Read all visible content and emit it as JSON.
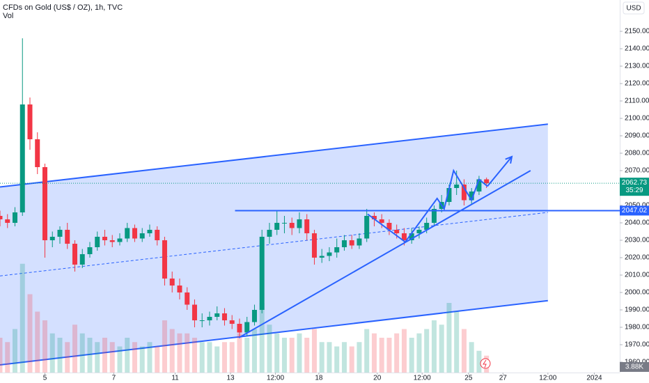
{
  "chart_data": {
    "type": "candlestick",
    "title": "CFDs on Gold (US$ / OZ), 1h, TVC",
    "volume_title": "Vol",
    "currency": "USD",
    "countdown": "35:29",
    "up_color": "#089981",
    "down_color": "#f23645",
    "x": [
      0,
      5,
      10,
      15,
      20,
      25,
      30,
      35,
      40,
      45,
      50,
      55,
      60,
      65,
      70,
      75,
      80,
      85,
      90,
      95,
      100,
      105,
      110,
      115,
      120,
      125,
      130,
      135,
      140,
      145,
      150,
      155,
      160,
      165,
      170,
      175,
      180,
      185,
      190,
      195,
      200,
      205,
      210,
      215,
      220,
      225,
      230,
      235,
      240,
      245,
      250,
      255,
      260,
      265,
      270,
      275,
      280,
      285,
      290,
      295,
      300,
      305,
      310,
      315,
      320,
      325
    ],
    "open": [
      2044,
      2042,
      2040,
      2046,
      2108,
      2088,
      2072,
      2030,
      2032,
      2036,
      2028,
      2016,
      2022,
      2026,
      2032,
      2030,
      2029,
      2031,
      2037,
      2031,
      2034,
      2036,
      2030,
      2008,
      2004,
      2000,
      1993,
      1984,
      1984,
      1986,
      1988,
      1984,
      1982,
      1977,
      1983,
      1990,
      2032,
      2036,
      2040,
      2040,
      2037,
      2042,
      2034,
      2020,
      2021,
      2023,
      2026,
      2030,
      2027,
      2031,
      2044,
      2042,
      2040,
      2036,
      2034,
      2030,
      2034,
      2036,
      2040,
      2048,
      2052,
      2060,
      2062,
      2053,
      2058,
      2065
    ],
    "high": [
      2047,
      2045,
      2049,
      2146,
      2112,
      2092,
      2074,
      2035,
      2038,
      2040,
      2030,
      2025,
      2029,
      2035,
      2036,
      2033,
      2034,
      2040,
      2039,
      2037,
      2039,
      2038,
      2032,
      2012,
      2008,
      2003,
      1996,
      1988,
      1989,
      1992,
      1991,
      1987,
      1985,
      1986,
      1993,
      2036,
      2040,
      2047,
      2044,
      2043,
      2046,
      2045,
      2036,
      2025,
      2026,
      2031,
      2033,
      2033,
      2034,
      2048,
      2046,
      2045,
      2042,
      2039,
      2037,
      2037,
      2038,
      2043,
      2050,
      2056,
      2062,
      2070,
      2065,
      2060,
      2067,
      2066
    ],
    "low": [
      2038,
      2037,
      2038,
      2044,
      2082,
      2068,
      2020,
      2026,
      2028,
      2025,
      2012,
      2014,
      2020,
      2024,
      2027,
      2026,
      2027,
      2029,
      2029,
      2029,
      2032,
      2027,
      2004,
      2000,
      1996,
      1990,
      1980,
      1980,
      1981,
      1984,
      1981,
      1979,
      1974,
      1975,
      1981,
      1988,
      2028,
      2033,
      2034,
      2033,
      2034,
      2030,
      2016,
      2017,
      2018,
      2020,
      2024,
      2025,
      2025,
      2029,
      2038,
      2037,
      2033,
      2031,
      2027,
      2028,
      2031,
      2034,
      2038,
      2046,
      2050,
      2056,
      2050,
      2051,
      2056,
      2060
    ],
    "close": [
      2042,
      2040,
      2046,
      2108,
      2088,
      2072,
      2030,
      2032,
      2036,
      2028,
      2016,
      2022,
      2026,
      2032,
      2030,
      2029,
      2031,
      2037,
      2031,
      2034,
      2036,
      2030,
      2008,
      2004,
      2000,
      1993,
      1984,
      1984,
      1986,
      1988,
      1984,
      1982,
      1977,
      1983,
      1990,
      2032,
      2036,
      2040,
      2040,
      2037,
      2042,
      2034,
      2020,
      2021,
      2023,
      2026,
      2030,
      2027,
      2031,
      2044,
      2042,
      2040,
      2036,
      2034,
      2030,
      2034,
      2036,
      2040,
      2048,
      2052,
      2060,
      2062,
      2053,
      2058,
      2065,
      2062.73
    ],
    "volume": [
      8,
      7,
      10,
      25,
      18,
      14,
      12,
      9,
      8,
      7,
      11,
      9,
      8,
      7,
      8,
      7,
      6,
      8,
      7,
      6,
      7,
      6,
      12,
      10,
      9,
      9,
      8,
      7,
      7,
      6,
      7,
      7,
      9,
      8,
      10,
      16,
      11,
      9,
      8,
      8,
      9,
      8,
      10,
      7,
      7,
      6,
      7,
      6,
      7,
      10,
      9,
      8,
      8,
      9,
      10,
      8,
      9,
      10,
      12,
      11,
      16,
      14,
      10,
      7,
      5,
      3.88
    ],
    "volume_value_labels": [
      null,
      null,
      null,
      null,
      null,
      null,
      null,
      null,
      null,
      null,
      null,
      null,
      null,
      null,
      null,
      null,
      null,
      null,
      null,
      null,
      null,
      null,
      null,
      null,
      null,
      null,
      null,
      null,
      null,
      null,
      null,
      null,
      null,
      null,
      null,
      null,
      null,
      null,
      null,
      null,
      null,
      null,
      null,
      null,
      null,
      null,
      null,
      null,
      null,
      null,
      null,
      null,
      null,
      null,
      null,
      null,
      null,
      null,
      null,
      null,
      null,
      null,
      null,
      null,
      null,
      "3.88K"
    ],
    "vlim": [
      0,
      40
    ],
    "xlim": [
      0,
      414
    ],
    "xticks": [
      {
        "value": 30,
        "label": "5"
      },
      {
        "value": 76,
        "label": "7"
      },
      {
        "value": 117,
        "label": "11"
      },
      {
        "value": 154,
        "label": "13"
      },
      {
        "value": 184,
        "label": "12:00"
      },
      {
        "value": 213,
        "label": "18"
      },
      {
        "value": 252,
        "label": "20"
      },
      {
        "value": 282,
        "label": "12:00"
      },
      {
        "value": 313,
        "label": "25"
      },
      {
        "value": 336,
        "label": "27"
      },
      {
        "value": 366,
        "label": "12:00"
      },
      {
        "value": 397,
        "label": "2024"
      }
    ],
    "ylim": [
      1954,
      2168
    ],
    "yticks": [
      {
        "value": 1960,
        "label": "1960.00"
      },
      {
        "value": 1970,
        "label": "1970.00"
      },
      {
        "value": 1980,
        "label": "1980.00"
      },
      {
        "value": 1990,
        "label": "1990.00"
      },
      {
        "value": 2000,
        "label": "2000.00"
      },
      {
        "value": 2010,
        "label": "2010.00"
      },
      {
        "value": 2020,
        "label": "2020.00"
      },
      {
        "value": 2030,
        "label": "2030.00"
      },
      {
        "value": 2040,
        "label": "2040.00"
      },
      {
        "value": 2050,
        "label": "2050.00"
      },
      {
        "value": 2060,
        "label": "2060.00"
      },
      {
        "value": 2070,
        "label": "2070.00"
      },
      {
        "value": 2080,
        "label": "2080.00"
      },
      {
        "value": 2090,
        "label": "2090.00"
      },
      {
        "value": 2100,
        "label": "2100.00"
      },
      {
        "value": 2110,
        "label": "2110.00"
      },
      {
        "value": 2120,
        "label": "2120.00"
      },
      {
        "value": 2130,
        "label": "2130.00"
      },
      {
        "value": 2140,
        "label": "2140.00"
      },
      {
        "value": 2150,
        "label": "2150.00"
      }
    ],
    "drawing_color": "#2962ff",
    "drawings": {
      "channel": {
        "x": [
          0,
          366
        ],
        "upper": [
          2060.6,
          2096.7
        ],
        "lower": [
          1958.4,
          1995.3
        ]
      },
      "hline": {
        "x": 157,
        "price": 2047.02
      },
      "trendline": {
        "x": [
          159.5,
          354.4
        ],
        "y": [
          1974,
          2070
        ]
      },
      "zigzag": {
        "x": [
          245.6,
          270.7,
          292,
          296.7,
          303,
          315,
          320,
          325.6
        ],
        "y": [
          2045,
          2029,
          2054,
          2048,
          2070,
          2053,
          2065,
          2061
        ]
      },
      "arrow": {
        "x": [
          325.6,
          341.9
        ],
        "y": [
          2061,
          2078
        ]
      }
    }
  }
}
